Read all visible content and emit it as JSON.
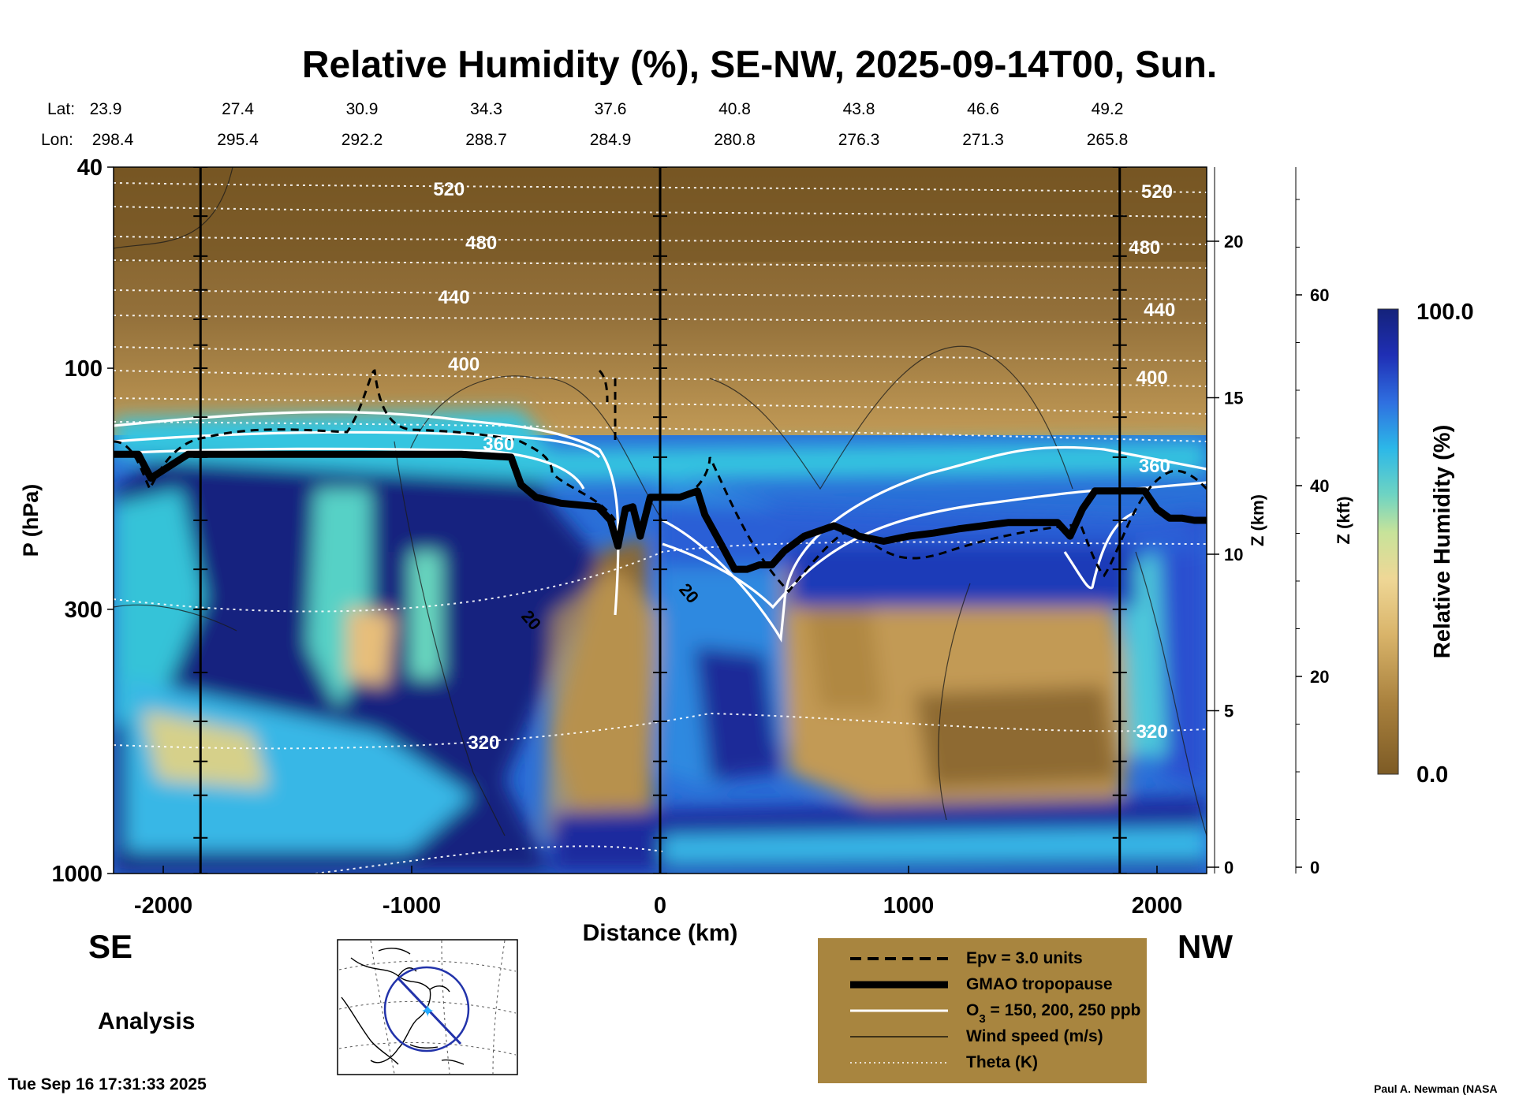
{
  "chart_data": {
    "type": "heatmap",
    "title": "Relative Humidity (%), SE-NW, 2025-09-14T00, Sun.",
    "xlabel": "Distance (km)",
    "ylabel": "P (hPa)",
    "right_axis_label_km": "Z (km)",
    "right_axis_label_kft": "Z (kft)",
    "xlim": [
      -2200,
      2200
    ],
    "ylim": [
      1000,
      40
    ],
    "x_ticks": [
      -2000,
      -1000,
      0,
      1000,
      2000
    ],
    "y_ticks": [
      40,
      100,
      300,
      1000
    ],
    "y_tick_labels": [
      "40",
      "100",
      "300",
      "1000"
    ],
    "x_tick_labels": [
      "-2000",
      "-1000",
      "0",
      "1000",
      "2000"
    ],
    "z_km_ticks": [
      0,
      5,
      10,
      15,
      20
    ],
    "z_km_tick_labels": [
      "0",
      "5",
      "10",
      "15",
      "20"
    ],
    "z_kft_ticks": [
      0,
      20,
      40,
      60
    ],
    "z_kft_tick_labels": [
      "0",
      "20",
      "40",
      "60"
    ],
    "lat_label": "Lat:",
    "lon_label": "Lon:",
    "lat_values": [
      "23.9",
      "27.4",
      "30.9",
      "34.3",
      "37.6",
      "40.8",
      "43.8",
      "46.6",
      "49.2"
    ],
    "lon_values": [
      "298.4",
      "295.4",
      "292.2",
      "288.7",
      "284.9",
      "280.8",
      "276.3",
      "271.3",
      "265.8"
    ],
    "lat_lon_distances": [
      -2200,
      -1700,
      -1200,
      -700,
      -200,
      300,
      800,
      1300,
      1800
    ],
    "vertical_markers_km": [
      -1850,
      0,
      1850
    ],
    "theta_levels": [
      {
        "label": "520",
        "values_hpa": [
          {
            "x": -2200,
            "p": 46
          },
          {
            "x": 2200,
            "p": 46
          }
        ],
        "label_left_x": -850,
        "label_right_x": 2000
      },
      {
        "label": "480",
        "values_hpa": [],
        "label_left_x": -720,
        "label_right_x": 1950
      },
      {
        "label": "440",
        "values_hpa": [],
        "label_left_x": -830,
        "label_right_x": 2010
      },
      {
        "label": "400",
        "values_hpa": [],
        "label_left_x": -790,
        "label_right_x": 1980
      },
      {
        "label": "360",
        "values_hpa": [],
        "label_left_x": -650,
        "label_right_x": 1990
      },
      {
        "label": "320",
        "values_hpa": [],
        "label_left_x": -710,
        "label_right_x": 1980
      }
    ],
    "theta_level_labels": [
      "520",
      "480",
      "440",
      "400",
      "360",
      "320"
    ],
    "wind_labels": [
      "20",
      "20"
    ],
    "tropopause": {
      "name": "GMAO tropopause",
      "x": [
        -2200,
        -2100,
        -2050,
        -1900,
        -1600,
        -1200,
        -800,
        -600,
        -560,
        -500,
        -400,
        -250,
        -200,
        -170,
        -140,
        -110,
        -80,
        -40,
        0,
        80,
        150,
        180,
        250,
        300,
        350,
        400,
        450,
        500,
        580,
        700,
        800,
        900,
        1000,
        1100,
        1200,
        1300,
        1400,
        1500,
        1600,
        1650,
        1700,
        1750,
        1800,
        1850,
        1950,
        2000,
        2050,
        2100,
        2150,
        2200
      ],
      "p": [
        148,
        148,
        165,
        148,
        148,
        148,
        148,
        150,
        170,
        180,
        185,
        188,
        200,
        225,
        190,
        188,
        215,
        180,
        180,
        180,
        175,
        195,
        225,
        250,
        250,
        245,
        245,
        230,
        215,
        205,
        215,
        220,
        215,
        212,
        208,
        205,
        202,
        202,
        202,
        215,
        190,
        175,
        175,
        175,
        175,
        190,
        198,
        198,
        200,
        200
      ]
    },
    "colorbar": {
      "label": "Relative Humidity (%)",
      "min_label": "0.0",
      "max_label": "100.0",
      "min": 0,
      "max": 100
    }
  },
  "legend": {
    "items": [
      {
        "label_prefix": "Epv = 3.0 units",
        "label_sub": "",
        "label_suffix": "",
        "style": "dashed-black"
      },
      {
        "label_prefix": "GMAO tropopause",
        "label_sub": "",
        "label_suffix": "",
        "style": "thick-black"
      },
      {
        "label_prefix": "O",
        "label_sub": "3",
        "label_suffix": " = 150, 200, 250 ppb",
        "style": "white"
      },
      {
        "label_prefix": "Wind speed (m/s)",
        "label_sub": "",
        "label_suffix": "",
        "style": "thin-black"
      },
      {
        "label_prefix": "Theta (K)",
        "label_sub": "",
        "label_suffix": "",
        "style": "dotted-white"
      }
    ],
    "background_color": "#a8853f"
  },
  "labels": {
    "se": "SE",
    "nw": "NW",
    "analysis": "Analysis",
    "timestamp": "Tue Sep 16 17:31:33 2025",
    "credit": "Paul A. Newman (NASA"
  },
  "colors": {
    "dry": "#7c5a24",
    "mid": "#c9a25a",
    "moist": "#2d3da8",
    "wet": "#15237f"
  }
}
